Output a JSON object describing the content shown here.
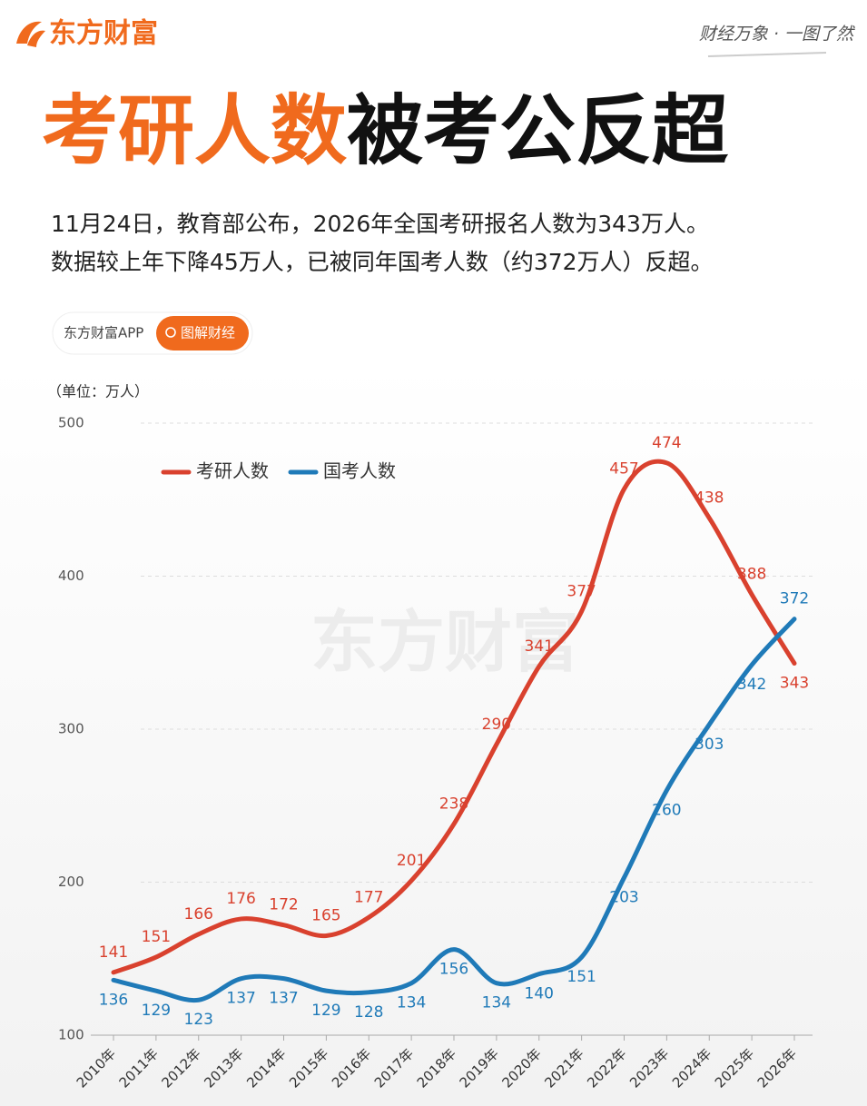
{
  "header": {
    "logo": "东方财富",
    "tagline": "财经万象 · 一图了然"
  },
  "title": {
    "highlight": "考研人数",
    "rest": "被考公反超"
  },
  "intro": [
    "11月24日，教育部公布，2026年全国考研报名人数为343万人。",
    "数据较上年下降45万人，已被同年国考人数（约372万人）反超。"
  ],
  "search": {
    "brand": "东方财富APP",
    "button": "图解财经"
  },
  "chart_data": {
    "type": "line",
    "unit_label": "（单位：万人）",
    "watermark": "东方财富",
    "categories": [
      "2010年",
      "2011年",
      "2012年",
      "2013年",
      "2014年",
      "2015年",
      "2016年",
      "2017年",
      "2018年",
      "2019年",
      "2020年",
      "2021年",
      "2022年",
      "2023年",
      "2024年",
      "2025年",
      "2026年"
    ],
    "series": [
      {
        "name": "考研人数",
        "color": "#d9412e",
        "values": [
          141,
          151,
          166,
          176,
          172,
          165,
          177,
          201,
          238,
          290,
          341,
          377,
          457,
          474,
          438,
          388,
          343
        ]
      },
      {
        "name": "国考人数",
        "color": "#1f7ab8",
        "values": [
          136,
          129,
          123,
          137,
          137,
          129,
          128,
          134,
          156,
          134,
          140,
          151,
          203,
          260,
          303,
          342,
          372
        ]
      }
    ],
    "ylim": [
      100,
      500
    ],
    "yticks": [
      100,
      200,
      300,
      400,
      500
    ],
    "grid": true,
    "legend": "upper left"
  }
}
